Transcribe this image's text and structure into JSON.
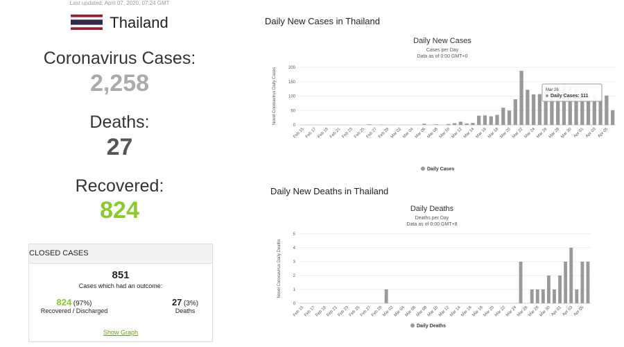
{
  "summary": {
    "last_updated": "Last updated: April 07, 2020, 07:24 GMT",
    "country": "Thailand",
    "cases_label": "Coronavirus Cases:",
    "cases": "2,258",
    "deaths_label": "Deaths:",
    "deaths": "27",
    "recovered_label": "Recovered:",
    "recovered": "824"
  },
  "closed_cases": {
    "title": "CLOSED CASES",
    "total": "851",
    "total_label": "Cases which had an outcome:",
    "recovered": "824",
    "recovered_pct": "(97%)",
    "recovered_label": "Recovered / Discharged",
    "deaths": "27",
    "deaths_pct": "(3%)",
    "deaths_label": "Deaths",
    "link": "Show Graph"
  },
  "sections": [
    "Daily New Cases in Thailand",
    "Daily New Deaths in Thailand"
  ],
  "chart_data": [
    {
      "type": "bar",
      "title": "Daily New Cases",
      "subtitle": [
        "Cases per Day",
        "Data as of 0:00 GMT+0"
      ],
      "y_label": "Novel Coronavirus Daily Cases",
      "categories": [
        "Feb 15",
        null,
        "Feb 17",
        null,
        "Feb 19",
        null,
        "Feb 21",
        null,
        "Feb 23",
        null,
        "Feb 25",
        null,
        "Feb 27",
        null,
        "Feb 29",
        null,
        "Mar 02",
        null,
        "Mar 04",
        null,
        "Mar 06",
        null,
        "Mar 08",
        null,
        "Mar 10",
        null,
        "Mar 12",
        null,
        "Mar 14",
        null,
        "Mar 16",
        null,
        "Mar 18",
        null,
        "Mar 20",
        null,
        "Mar 22",
        null,
        "Mar 24",
        null,
        "Mar 26",
        null,
        "Mar 28",
        null,
        "Mar 30",
        null,
        "Apr 01",
        null,
        "Apr 03",
        null,
        "Apr 05",
        null
      ],
      "series": [
        {
          "name": "Daily Cases",
          "color": "#999999",
          "values": [
            0,
            0,
            0,
            0,
            0,
            0,
            0,
            0,
            0,
            0,
            0,
            2,
            0,
            1,
            0,
            0,
            0,
            0,
            0,
            0,
            4,
            0,
            2,
            0,
            3,
            6,
            11,
            5,
            7,
            32,
            33,
            30,
            35,
            60,
            50,
            89,
            188,
            122,
            106,
            107,
            111,
            91,
            109,
            143,
            136,
            127,
            120,
            104,
            103,
            89,
            102,
            51
          ]
        }
      ],
      "ylim": [
        0,
        200
      ],
      "yticks": [
        0,
        50,
        100,
        150,
        200
      ],
      "tooltip": {
        "title": "Mar 26",
        "text": "Daily Cases: 111"
      }
    },
    {
      "type": "bar",
      "title": "Daily Deaths",
      "subtitle": [
        "Deaths per Day",
        "Data as of 0:00 GMT+8"
      ],
      "y_label": "Novel Coronavirus Daily Deaths",
      "categories": [
        "Feb 15",
        null,
        "Feb 17",
        null,
        "Feb 19",
        null,
        "Feb 21",
        null,
        "Feb 23",
        null,
        "Feb 25",
        null,
        "Feb 27",
        null,
        "Feb 29",
        null,
        "Mar 02",
        null,
        "Mar 04",
        null,
        "Mar 06",
        null,
        "Mar 08",
        null,
        "Mar 10",
        null,
        "Mar 12",
        null,
        "Mar 14",
        null,
        "Mar 16",
        null,
        "Mar 18",
        null,
        "Mar 20",
        null,
        "Mar 22",
        null,
        "Mar 24",
        null,
        "Mar 26",
        null,
        "Mar 28",
        null,
        "Mar 30",
        null,
        "Apr 01",
        null,
        "Apr 03",
        null,
        "Apr 05",
        null
      ],
      "series": [
        {
          "name": "Daily Deaths",
          "color": "#999999",
          "values": [
            0,
            0,
            0,
            0,
            0,
            0,
            0,
            0,
            0,
            0,
            0,
            0,
            0,
            0,
            0,
            1,
            0,
            0,
            0,
            0,
            0,
            0,
            0,
            0,
            0,
            0,
            0,
            0,
            0,
            0,
            0,
            0,
            0,
            0,
            0,
            0,
            0,
            0,
            0,
            3,
            0,
            1,
            1,
            1,
            2,
            1,
            2,
            3,
            4,
            1,
            3,
            3
          ]
        }
      ],
      "ylim": [
        0,
        5
      ],
      "yticks": [
        0,
        1,
        2,
        3,
        4,
        5
      ]
    }
  ]
}
